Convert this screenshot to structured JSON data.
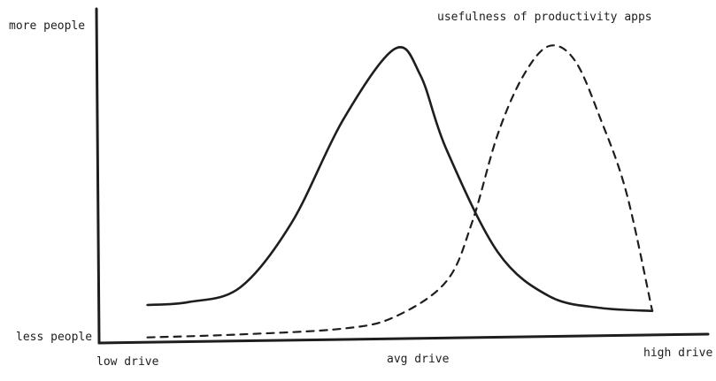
{
  "chart_data": {
    "type": "line",
    "title": "",
    "xlabel": "",
    "ylabel": "",
    "x_ticks": [
      "low drive",
      "avg drive",
      "high drive"
    ],
    "y_ticks": [
      "less people",
      "more people"
    ],
    "xlim": [
      0,
      10
    ],
    "ylim": [
      0,
      10
    ],
    "grid": false,
    "series": [
      {
        "name": "",
        "style": "solid",
        "x": [
          0.2,
          1.0,
          2.0,
          3.0,
          4.0,
          5.0,
          5.5,
          6.0,
          7.0,
          8.0,
          9.0,
          10.0
        ],
        "y": [
          1.2,
          1.3,
          1.8,
          4.0,
          7.5,
          9.9,
          9.0,
          6.5,
          3.0,
          1.5,
          1.1,
          1.0
        ]
      },
      {
        "name": "usefulness of productivity apps",
        "style": "dashed",
        "x": [
          0.2,
          2.0,
          4.0,
          5.0,
          6.0,
          6.5,
          7.0,
          7.5,
          8.0,
          8.5,
          9.0,
          9.5,
          10.0
        ],
        "y": [
          0.1,
          0.2,
          0.4,
          0.8,
          2.0,
          4.0,
          7.0,
          9.0,
          10.0,
          9.5,
          7.5,
          5.0,
          1.0
        ]
      }
    ],
    "annotations": [
      {
        "text": "usefulness of productivity apps"
      }
    ]
  },
  "colors": {
    "ink": "#1e1e1e",
    "background": "#ffffff"
  }
}
